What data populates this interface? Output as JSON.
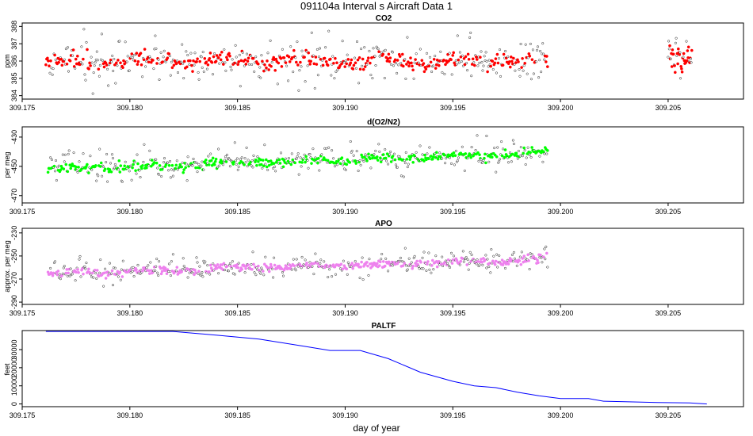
{
  "figure": {
    "title": "091104a   Interval s Aircraft Data 1",
    "xlabel": "day of year"
  },
  "colors": {
    "co2": "#ff0000",
    "o2n2": "#00ff00",
    "apo": "#ee82ee",
    "paltf": "#0000ff",
    "outline": "#222222"
  },
  "chart_data": [
    {
      "type": "scatter",
      "title": "CO2",
      "ylabel": "ppm",
      "xlim": [
        309.175,
        309.2085
      ],
      "ylim": [
        383.8,
        388.2
      ],
      "x_ticks": [
        309.175,
        309.18,
        309.185,
        309.19,
        309.195,
        309.2,
        309.205
      ],
      "x_tick_labels": [
        "309.175",
        "309.180",
        "309.185",
        "309.190",
        "309.195",
        "309.200",
        "309.205"
      ],
      "y_ticks": [
        384,
        385,
        386,
        387,
        388
      ],
      "y_tick_labels": [
        "384",
        "385",
        "386",
        "387",
        "388"
      ],
      "segments": [
        {
          "x_start": 309.1761,
          "x_end": 309.1994,
          "n": 620,
          "mean": 386.0,
          "trend": 0.0,
          "noise": 0.5,
          "outlier_spread": 1.9
        },
        {
          "x_start": 309.205,
          "x_end": 309.2061,
          "n": 45,
          "mean": 386.2,
          "trend": 0.0,
          "noise": 0.7,
          "outlier_spread": 2.0
        }
      ]
    },
    {
      "type": "scatter",
      "title": "d(O2/N2)",
      "ylabel": "per meg",
      "xlim": [
        309.175,
        309.2085
      ],
      "ylim": [
        -475,
        -423
      ],
      "x_ticks": [
        309.175,
        309.18,
        309.185,
        309.19,
        309.195,
        309.2,
        309.205
      ],
      "x_tick_labels": [
        "309.175",
        "309.180",
        "309.185",
        "309.190",
        "309.195",
        "309.200",
        "309.205"
      ],
      "y_ticks": [
        -470,
        -450,
        -430
      ],
      "y_tick_labels": [
        "-470",
        "-450",
        "-430"
      ],
      "segments": [
        {
          "x_start": 309.1762,
          "x_end": 309.1994,
          "n": 640,
          "mean": -452,
          "trend": 11,
          "noise": 3.5,
          "outlier_spread": 14
        }
      ]
    },
    {
      "type": "scatter",
      "title": "APO",
      "ylabel": "approx. per meg",
      "xlim": [
        309.175,
        309.2085
      ],
      "ylim": [
        -292,
        -226
      ],
      "x_ticks": [
        309.175,
        309.18,
        309.185,
        309.19,
        309.195,
        309.2,
        309.205
      ],
      "x_tick_labels": [
        "309.175",
        "309.180",
        "309.185",
        "309.190",
        "309.195",
        "309.200",
        "309.205"
      ],
      "y_ticks": [
        -290,
        -270,
        -250,
        -230
      ],
      "y_tick_labels": [
        "-290",
        "-270",
        "-250",
        "-230"
      ],
      "segments": [
        {
          "x_start": 309.1762,
          "x_end": 309.1994,
          "n": 640,
          "mean": -265,
          "trend": 12,
          "noise": 4.0,
          "outlier_spread": 15
        }
      ]
    },
    {
      "type": "line",
      "title": "PALTF",
      "ylabel": "feet",
      "xlim": [
        309.175,
        309.2085
      ],
      "ylim": [
        -1500,
        40500
      ],
      "x_ticks": [
        309.175,
        309.18,
        309.185,
        309.19,
        309.195,
        309.2,
        309.205
      ],
      "x_tick_labels": [
        "309.175",
        "309.180",
        "309.185",
        "309.190",
        "309.195",
        "309.200",
        "309.205"
      ],
      "y_ticks": [
        0,
        10000,
        20000,
        30000
      ],
      "y_tick_labels": [
        "0",
        "10000",
        "20000",
        "30000"
      ],
      "x": [
        309.1761,
        309.178,
        309.18,
        309.182,
        309.184,
        309.186,
        309.188,
        309.1893,
        309.1907,
        309.192,
        309.1935,
        309.195,
        309.196,
        309.197,
        309.198,
        309.199,
        309.2,
        309.2013,
        309.202,
        309.203,
        309.2045,
        309.206,
        309.2068
      ],
      "y": [
        40000,
        40000,
        40000,
        40000,
        38000,
        35800,
        32000,
        29500,
        29500,
        25000,
        17500,
        12500,
        10000,
        9000,
        6500,
        4500,
        3000,
        3000,
        1500,
        1200,
        800,
        600,
        0
      ]
    }
  ]
}
